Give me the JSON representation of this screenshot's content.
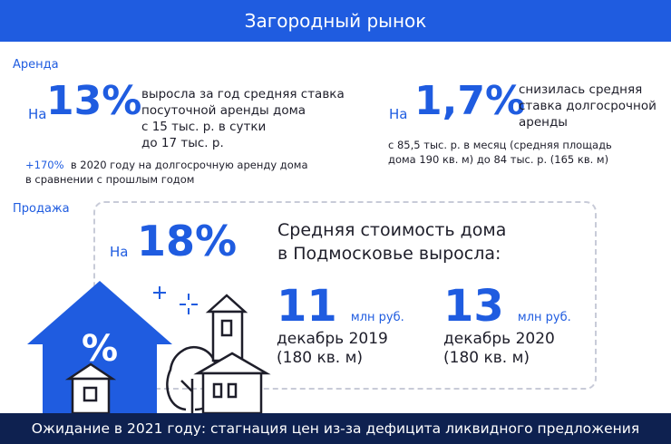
{
  "header": {
    "title": "Загородный рынок"
  },
  "rent": {
    "section_label": "Аренда",
    "left": {
      "prefix": "На",
      "value": "13%",
      "lines": [
        "выросла за год средняя ставка",
        "посуточной аренды дома",
        "с 15 тыс. р. в сутки",
        "до 17 тыс. р."
      ]
    },
    "note": {
      "value": "+170%",
      "text_line1": "в 2020 году на долгосрочную аренду дома",
      "text_line2": "в сравнении с прошлым годом"
    },
    "right": {
      "prefix": "На",
      "value": "1,7%",
      "lines": [
        "снизилась средняя",
        "ставка долгосрочной",
        "аренды"
      ],
      "details": [
        "с 85,5 тыс. р. в месяц (средняя площадь",
        "дома 190 кв. м)  до  84 тыс. р. (165 кв. м)"
      ]
    }
  },
  "sale": {
    "section_label": "Продажа",
    "prefix": "На",
    "value": "18%",
    "headline_line1": "Средняя стоимость дома",
    "headline_line2": "в Подмосковье выросла:",
    "figures": [
      {
        "value": "11",
        "unit": "млн руб.",
        "period": "декабрь 2019",
        "area": "(180 кв. м)"
      },
      {
        "value": "13",
        "unit": "млн руб.",
        "period": "декабрь 2020",
        "area": "(180 кв. м)"
      }
    ],
    "illustration": {
      "percent_symbol": "%",
      "icons": [
        "house-percent-icon",
        "sparkle-icon",
        "small-house-icon",
        "tree-icon",
        "tower-house-icon"
      ]
    }
  },
  "footer": {
    "text": "Ожидание в 2021 году: стагнация цен из-за дефицита ликвидного предложения"
  },
  "colors": {
    "accent": "#1f5ce0",
    "dark": "#0e2150",
    "text": "#1e1e2a",
    "dashed_border": "#c8cbd8"
  }
}
